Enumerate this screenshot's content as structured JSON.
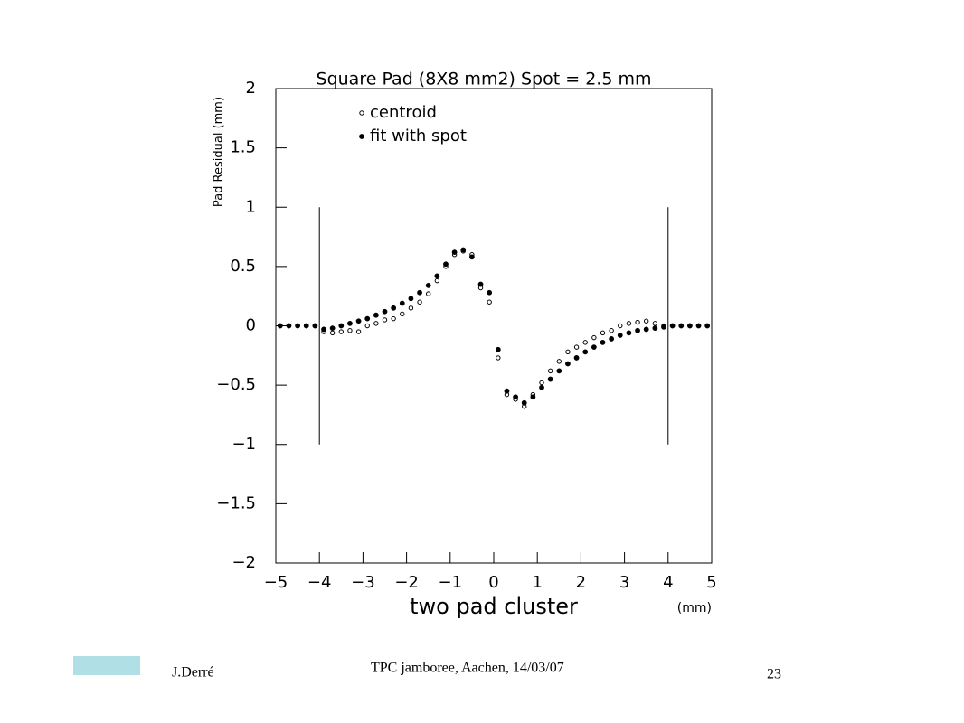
{
  "chart_data": {
    "type": "scatter",
    "title": "Square Pad (8X8 mm2) Spot = 2.5 mm",
    "ylabel": "Pad Residual (mm)",
    "xlabel": "two pad cluster",
    "xunit": "(mm)",
    "x": [
      -4.9,
      -4.7,
      -4.5,
      -4.3,
      -4.1,
      -3.9,
      -3.7,
      -3.5,
      -3.3,
      -3.1,
      -2.9,
      -2.7,
      -2.5,
      -2.3,
      -2.1,
      -1.9,
      -1.7,
      -1.5,
      -1.3,
      -1.1,
      -0.9,
      -0.7,
      -0.5,
      -0.3,
      -0.1,
      0.1,
      0.3,
      0.5,
      0.7,
      0.9,
      1.1,
      1.3,
      1.5,
      1.7,
      1.9,
      2.1,
      2.3,
      2.5,
      2.7,
      2.9,
      3.1,
      3.3,
      3.5,
      3.7,
      3.9,
      4.1,
      4.3,
      4.5,
      4.7,
      4.9
    ],
    "series": [
      {
        "name": "centroid",
        "color": "#000000",
        "marker": "open",
        "values": [
          0,
          0,
          0,
          0,
          0,
          -0.05,
          -0.06,
          -0.05,
          -0.04,
          -0.05,
          0.0,
          0.02,
          0.05,
          0.06,
          0.1,
          0.15,
          0.2,
          0.27,
          0.38,
          0.5,
          0.6,
          0.63,
          0.6,
          0.32,
          0.2,
          -0.27,
          -0.58,
          -0.62,
          -0.68,
          -0.58,
          -0.48,
          -0.38,
          -0.3,
          -0.22,
          -0.18,
          -0.14,
          -0.1,
          -0.06,
          -0.04,
          0.0,
          0.02,
          0.03,
          0.04,
          0.02,
          0.0,
          0,
          0,
          0,
          0,
          0
        ]
      },
      {
        "name": "fit with spot",
        "color": "#000000",
        "marker": "filled",
        "values": [
          0,
          0,
          0,
          0,
          0,
          -0.03,
          -0.02,
          0.0,
          0.02,
          0.04,
          0.06,
          0.09,
          0.12,
          0.15,
          0.19,
          0.23,
          0.28,
          0.34,
          0.42,
          0.52,
          0.62,
          0.64,
          0.58,
          0.35,
          0.28,
          -0.2,
          -0.55,
          -0.6,
          -0.65,
          -0.6,
          -0.52,
          -0.45,
          -0.38,
          -0.32,
          -0.27,
          -0.22,
          -0.18,
          -0.14,
          -0.11,
          -0.08,
          -0.06,
          -0.04,
          -0.03,
          -0.02,
          -0.01,
          0,
          0,
          0,
          0,
          0
        ]
      }
    ],
    "vlines": [
      -4,
      4
    ],
    "vline_range": [
      -1,
      1
    ],
    "xlim": [
      -5,
      5
    ],
    "xticks": [
      {
        "value": -5,
        "label": "−5"
      },
      {
        "value": -4,
        "label": "−4"
      },
      {
        "value": -3,
        "label": "−3"
      },
      {
        "value": -2,
        "label": "−2"
      },
      {
        "value": -1,
        "label": "−1"
      },
      0,
      1,
      2,
      3,
      4,
      5
    ],
    "ylim": [
      -2,
      2
    ],
    "yticks": [
      {
        "value": -2,
        "label": "−2"
      },
      {
        "value": -1.5,
        "label": "−1.5"
      },
      {
        "value": -1,
        "label": "−1"
      },
      {
        "value": -0.5,
        "label": "−0.5"
      },
      0,
      0.5,
      1,
      1.5,
      2
    ]
  },
  "footer": {
    "author": "J.Derré",
    "event": "TPC jamboree, Aachen, 14/03/07",
    "page": "23"
  }
}
